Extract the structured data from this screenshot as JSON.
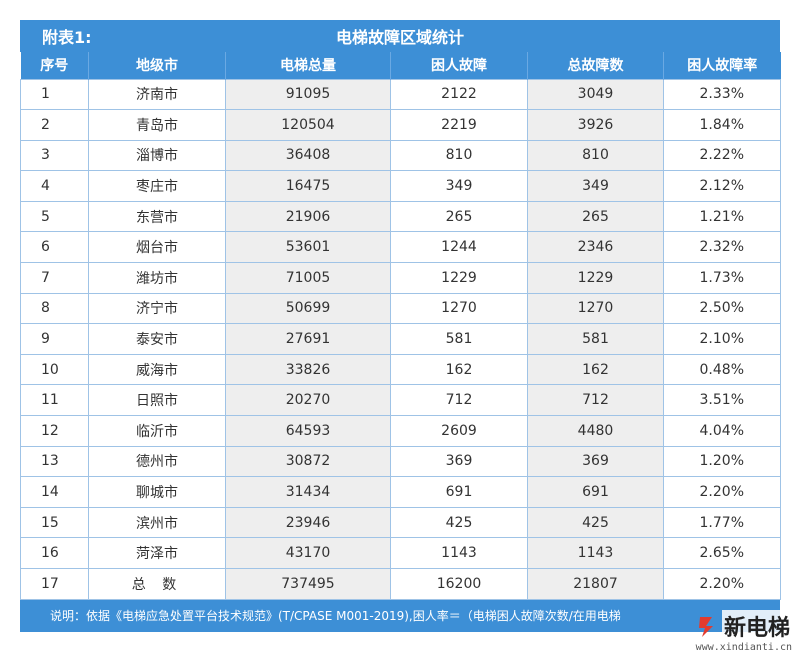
{
  "table": {
    "prefix": "附表1:",
    "title": "电梯故障区域统计",
    "headers": [
      "序号",
      "地级市",
      "电梯总量",
      "困人故障",
      "总故障数",
      "困人故障率"
    ],
    "rows": [
      [
        "1",
        "济南市",
        "91095",
        "2122",
        "3049",
        "2.33%"
      ],
      [
        "2",
        "青岛市",
        "120504",
        "2219",
        "3926",
        "1.84%"
      ],
      [
        "3",
        "淄博市",
        "36408",
        "810",
        "810",
        "2.22%"
      ],
      [
        "4",
        "枣庄市",
        "16475",
        "349",
        "349",
        "2.12%"
      ],
      [
        "5",
        "东营市",
        "21906",
        "265",
        "265",
        "1.21%"
      ],
      [
        "6",
        "烟台市",
        "53601",
        "1244",
        "2346",
        "2.32%"
      ],
      [
        "7",
        "潍坊市",
        "71005",
        "1229",
        "1229",
        "1.73%"
      ],
      [
        "8",
        "济宁市",
        "50699",
        "1270",
        "1270",
        "2.50%"
      ],
      [
        "9",
        "泰安市",
        "27691",
        "581",
        "581",
        "2.10%"
      ],
      [
        "10",
        "威海市",
        "33826",
        "162",
        "162",
        "0.48%"
      ],
      [
        "11",
        "日照市",
        "20270",
        "712",
        "712",
        "3.51%"
      ],
      [
        "12",
        "临沂市",
        "64593",
        "2609",
        "4480",
        "4.04%"
      ],
      [
        "13",
        "德州市",
        "30872",
        "369",
        "369",
        "1.20%"
      ],
      [
        "14",
        "聊城市",
        "31434",
        "691",
        "691",
        "2.20%"
      ],
      [
        "15",
        "滨州市",
        "23946",
        "425",
        "425",
        "1.77%"
      ],
      [
        "16",
        "菏泽市",
        "43170",
        "1143",
        "1143",
        "2.65%"
      ],
      [
        "17",
        "总 数",
        "737495",
        "16200",
        "21807",
        "2.20%"
      ]
    ],
    "note": "说明：依据《电梯应急处置平台技术规范》(T/CPASE M001-2019),困人率＝（电梯困人故障次数/在用电梯"
  },
  "watermark": {
    "name": "新电梯",
    "url": "www.xindianti.cn",
    "icon": "xindianti-logo-icon"
  },
  "colors": {
    "header_bg": "#3d8fd6",
    "alt_cell_bg": "#eeeeee",
    "border": "#9fc3e6"
  }
}
